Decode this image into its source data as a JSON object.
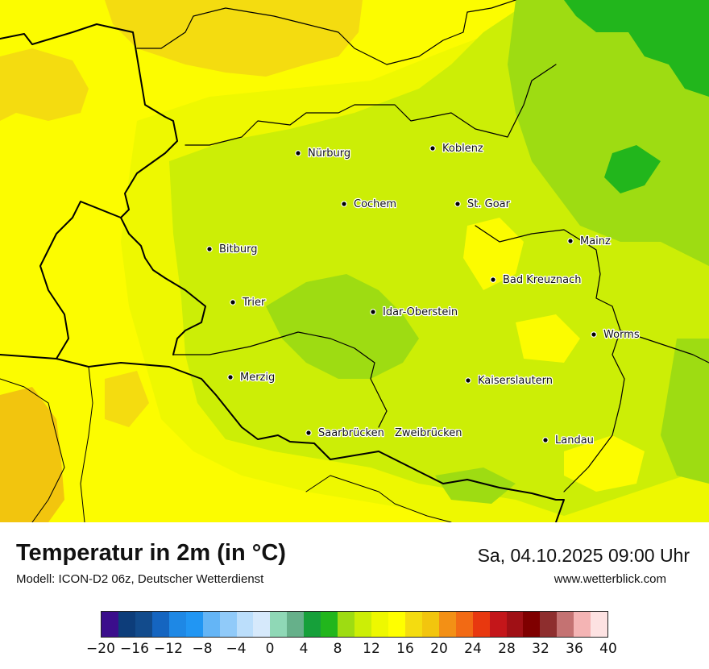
{
  "legend": {
    "title": "Temperatur in 2m (in °C)",
    "model": "Modell: ICON-D2 06z, Deutscher Wetterdienst",
    "datetime": "Sa, 04.10.2025 09:00 Uhr",
    "website": "www.wetterblick.com",
    "colors": [
      "#3b0e8c",
      "#0d3d7a",
      "#124b8c",
      "#1565c0",
      "#1e88e5",
      "#2196f3",
      "#64b5f6",
      "#90caf9",
      "#bbdefb",
      "#d6e9fb",
      "#8fd8b6",
      "#66b08a",
      "#16a03a",
      "#22b61c",
      "#9edc12",
      "#ccee06",
      "#eef800",
      "#ffff00",
      "#f4dc10",
      "#f2c50e",
      "#f39015",
      "#f26a14",
      "#e8380f",
      "#c4161a",
      "#a01015",
      "#7f0000",
      "#8e2e2e",
      "#c47272",
      "#f4b4b4",
      "#fde2e2"
    ],
    "ticks": [
      "−20",
      "−16",
      "−12",
      "−8",
      "−4",
      "0",
      "4",
      "8",
      "12",
      "16",
      "20",
      "24",
      "28",
      "32",
      "36",
      "40"
    ]
  },
  "map": {
    "palette": {
      "yellow": "#fcfc00",
      "lime_yellow": "#eef800",
      "yellow_green": "#ccee06",
      "green": "#9edc12",
      "bright_green": "#22b61c",
      "orange_yellow": "#f4dc10",
      "dark_orange_yellow": "#f2c50e"
    },
    "cities": [
      {
        "name": "Nürburg"
      },
      {
        "name": "Koblenz"
      },
      {
        "name": "Cochem"
      },
      {
        "name": "St. Goar"
      },
      {
        "name": "Mainz"
      },
      {
        "name": "Bitburg"
      },
      {
        "name": "Bad Kreuznach"
      },
      {
        "name": "Trier"
      },
      {
        "name": "Idar-Oberstein"
      },
      {
        "name": "Worms"
      },
      {
        "name": "Merzig"
      },
      {
        "name": "Kaiserslautern"
      },
      {
        "name": "Saarbrücken"
      },
      {
        "name": "Zweibrücken"
      },
      {
        "name": "Landau"
      }
    ]
  }
}
